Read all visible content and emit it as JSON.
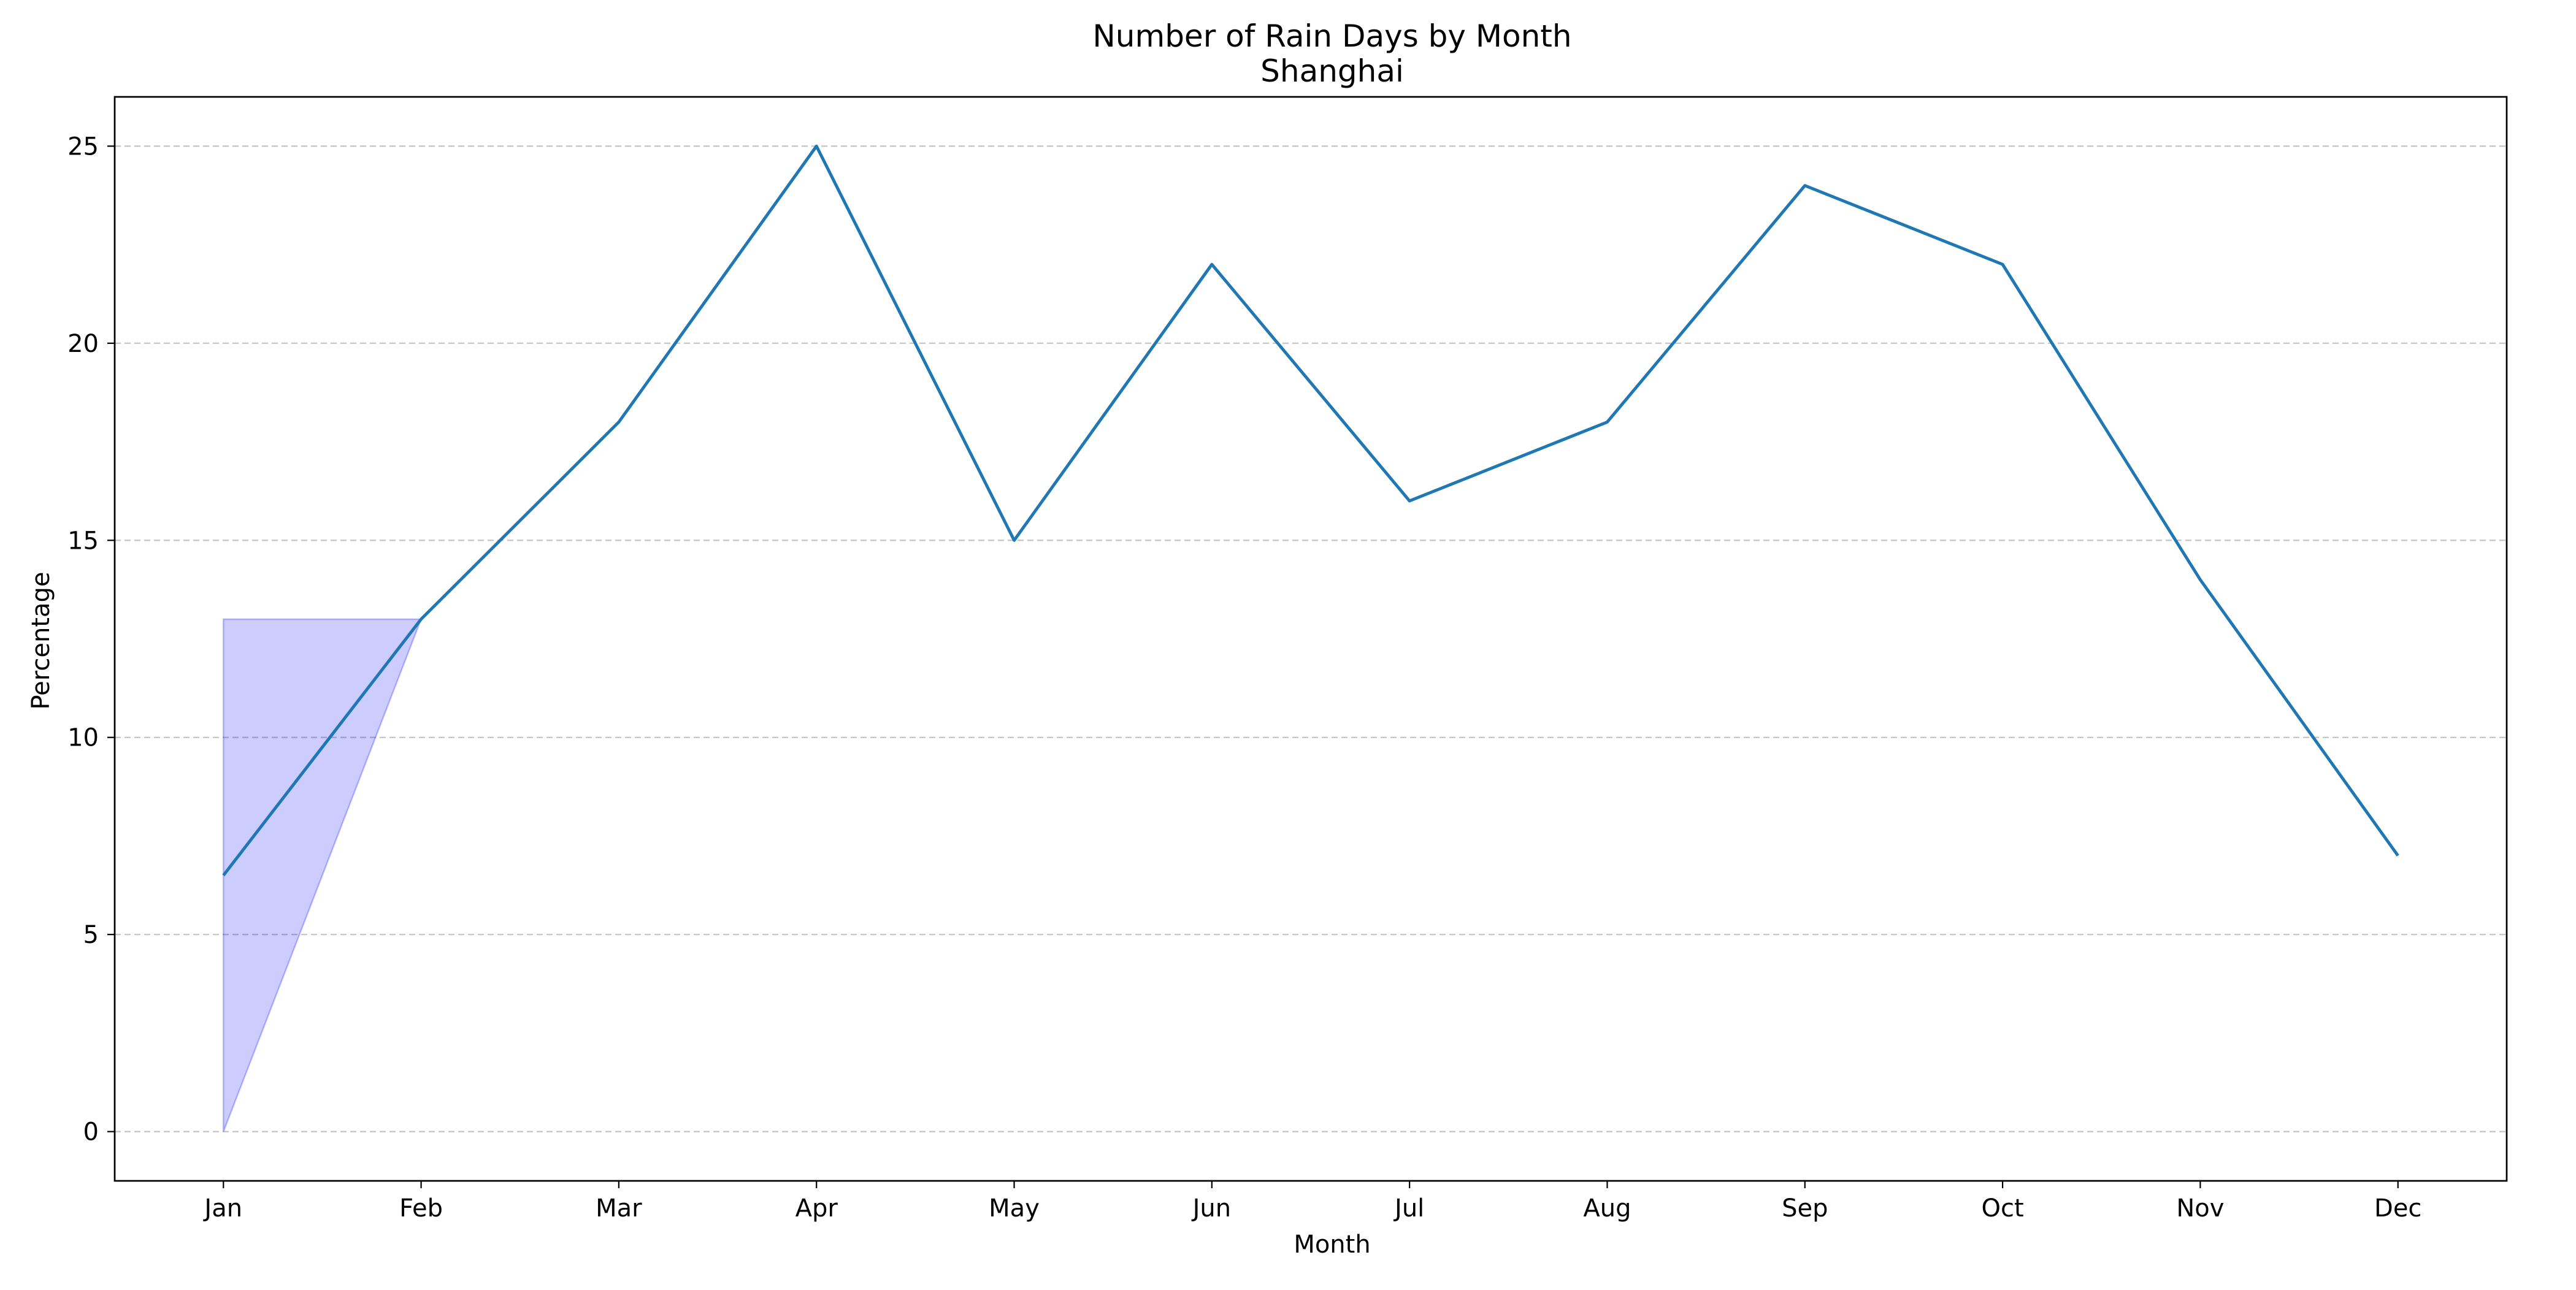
{
  "chart_data": {
    "type": "line",
    "title": "Number of Rain Days by Month",
    "subtitle": "Shanghai",
    "xlabel": "Month",
    "ylabel": "Percentage",
    "categories": [
      "Jan",
      "Feb",
      "Mar",
      "Apr",
      "May",
      "Jun",
      "Jul",
      "Aug",
      "Sep",
      "Oct",
      "Nov",
      "Dec"
    ],
    "series": [
      {
        "values": [
          6.5,
          13,
          18,
          25,
          15,
          22,
          16,
          18,
          24,
          22,
          14,
          7
        ]
      }
    ],
    "highlight_band": {
      "x_range": [
        "Jan",
        "Feb"
      ],
      "upper": [
        13,
        13
      ],
      "lower": [
        0,
        13
      ]
    },
    "ylim": [
      -1.25,
      26.25
    ],
    "yticks": [
      0,
      5,
      10,
      15,
      20,
      25
    ],
    "grid": {
      "y": true,
      "x": false,
      "style": "dashed"
    },
    "colors": {
      "line": "#1f77b4",
      "band_fill": "#0000ff",
      "band_edge": "#0000ff",
      "grid": "#b0b0b0",
      "axes": "#000000"
    }
  }
}
